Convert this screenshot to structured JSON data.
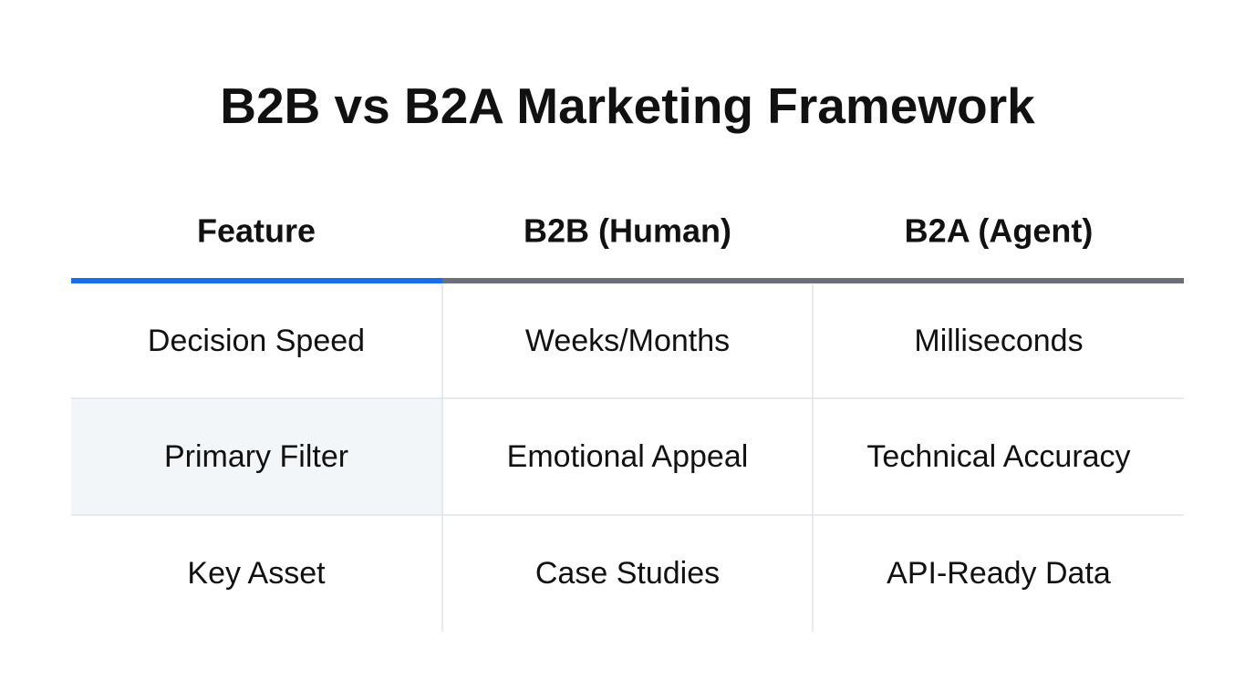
{
  "title": "B2B vs B2A Marketing Framework",
  "table": {
    "header": [
      "Feature",
      "B2B (Human)",
      "B2A (Agent)"
    ],
    "rows": [
      [
        "Decision Speed",
        "Weeks/Months",
        "Milliseconds"
      ],
      [
        "Primary Filter",
        "Emotional Appeal",
        "Technical Accuracy"
      ],
      [
        "Key Asset",
        "Case Studies",
        "API-Ready Data"
      ]
    ]
  }
}
